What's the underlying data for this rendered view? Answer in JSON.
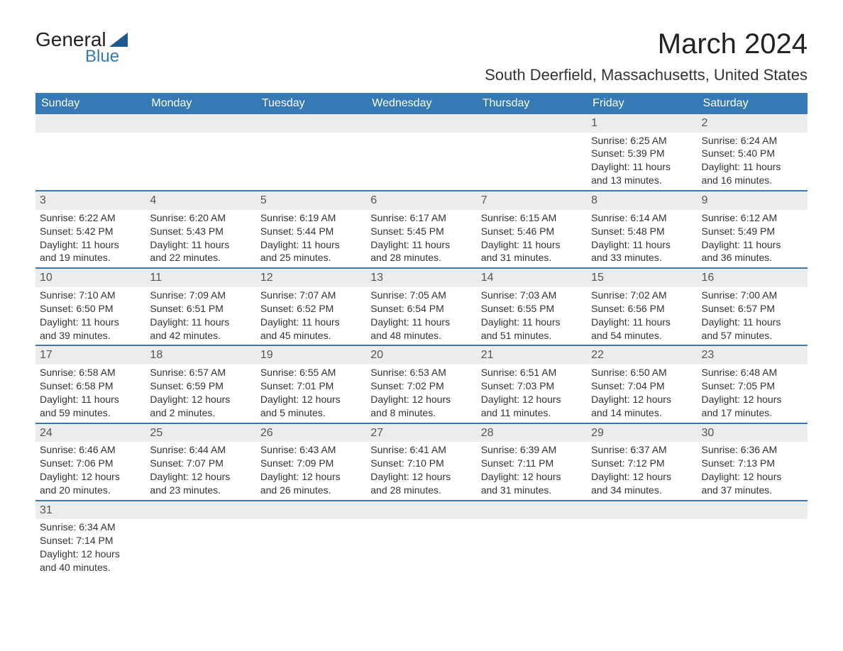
{
  "logo": {
    "top": "General",
    "bottom": "Blue"
  },
  "title": "March 2024",
  "location": "South Deerfield, Massachusetts, United States",
  "days_of_week": [
    "Sunday",
    "Monday",
    "Tuesday",
    "Wednesday",
    "Thursday",
    "Friday",
    "Saturday"
  ],
  "colors": {
    "header_bg": "#3579b5",
    "header_text": "#ffffff",
    "daynum_bg": "#ececec",
    "week_sep": "#3579b5"
  },
  "weeks": [
    [
      null,
      null,
      null,
      null,
      null,
      {
        "n": "1",
        "sr": "6:25 AM",
        "ss": "5:39 PM",
        "dl1": "11 hours",
        "dl2": "and 13 minutes."
      },
      {
        "n": "2",
        "sr": "6:24 AM",
        "ss": "5:40 PM",
        "dl1": "11 hours",
        "dl2": "and 16 minutes."
      }
    ],
    [
      {
        "n": "3",
        "sr": "6:22 AM",
        "ss": "5:42 PM",
        "dl1": "11 hours",
        "dl2": "and 19 minutes."
      },
      {
        "n": "4",
        "sr": "6:20 AM",
        "ss": "5:43 PM",
        "dl1": "11 hours",
        "dl2": "and 22 minutes."
      },
      {
        "n": "5",
        "sr": "6:19 AM",
        "ss": "5:44 PM",
        "dl1": "11 hours",
        "dl2": "and 25 minutes."
      },
      {
        "n": "6",
        "sr": "6:17 AM",
        "ss": "5:45 PM",
        "dl1": "11 hours",
        "dl2": "and 28 minutes."
      },
      {
        "n": "7",
        "sr": "6:15 AM",
        "ss": "5:46 PM",
        "dl1": "11 hours",
        "dl2": "and 31 minutes."
      },
      {
        "n": "8",
        "sr": "6:14 AM",
        "ss": "5:48 PM",
        "dl1": "11 hours",
        "dl2": "and 33 minutes."
      },
      {
        "n": "9",
        "sr": "6:12 AM",
        "ss": "5:49 PM",
        "dl1": "11 hours",
        "dl2": "and 36 minutes."
      }
    ],
    [
      {
        "n": "10",
        "sr": "7:10 AM",
        "ss": "6:50 PM",
        "dl1": "11 hours",
        "dl2": "and 39 minutes."
      },
      {
        "n": "11",
        "sr": "7:09 AM",
        "ss": "6:51 PM",
        "dl1": "11 hours",
        "dl2": "and 42 minutes."
      },
      {
        "n": "12",
        "sr": "7:07 AM",
        "ss": "6:52 PM",
        "dl1": "11 hours",
        "dl2": "and 45 minutes."
      },
      {
        "n": "13",
        "sr": "7:05 AM",
        "ss": "6:54 PM",
        "dl1": "11 hours",
        "dl2": "and 48 minutes."
      },
      {
        "n": "14",
        "sr": "7:03 AM",
        "ss": "6:55 PM",
        "dl1": "11 hours",
        "dl2": "and 51 minutes."
      },
      {
        "n": "15",
        "sr": "7:02 AM",
        "ss": "6:56 PM",
        "dl1": "11 hours",
        "dl2": "and 54 minutes."
      },
      {
        "n": "16",
        "sr": "7:00 AM",
        "ss": "6:57 PM",
        "dl1": "11 hours",
        "dl2": "and 57 minutes."
      }
    ],
    [
      {
        "n": "17",
        "sr": "6:58 AM",
        "ss": "6:58 PM",
        "dl1": "11 hours",
        "dl2": "and 59 minutes."
      },
      {
        "n": "18",
        "sr": "6:57 AM",
        "ss": "6:59 PM",
        "dl1": "12 hours",
        "dl2": "and 2 minutes."
      },
      {
        "n": "19",
        "sr": "6:55 AM",
        "ss": "7:01 PM",
        "dl1": "12 hours",
        "dl2": "and 5 minutes."
      },
      {
        "n": "20",
        "sr": "6:53 AM",
        "ss": "7:02 PM",
        "dl1": "12 hours",
        "dl2": "and 8 minutes."
      },
      {
        "n": "21",
        "sr": "6:51 AM",
        "ss": "7:03 PM",
        "dl1": "12 hours",
        "dl2": "and 11 minutes."
      },
      {
        "n": "22",
        "sr": "6:50 AM",
        "ss": "7:04 PM",
        "dl1": "12 hours",
        "dl2": "and 14 minutes."
      },
      {
        "n": "23",
        "sr": "6:48 AM",
        "ss": "7:05 PM",
        "dl1": "12 hours",
        "dl2": "and 17 minutes."
      }
    ],
    [
      {
        "n": "24",
        "sr": "6:46 AM",
        "ss": "7:06 PM",
        "dl1": "12 hours",
        "dl2": "and 20 minutes."
      },
      {
        "n": "25",
        "sr": "6:44 AM",
        "ss": "7:07 PM",
        "dl1": "12 hours",
        "dl2": "and 23 minutes."
      },
      {
        "n": "26",
        "sr": "6:43 AM",
        "ss": "7:09 PM",
        "dl1": "12 hours",
        "dl2": "and 26 minutes."
      },
      {
        "n": "27",
        "sr": "6:41 AM",
        "ss": "7:10 PM",
        "dl1": "12 hours",
        "dl2": "and 28 minutes."
      },
      {
        "n": "28",
        "sr": "6:39 AM",
        "ss": "7:11 PM",
        "dl1": "12 hours",
        "dl2": "and 31 minutes."
      },
      {
        "n": "29",
        "sr": "6:37 AM",
        "ss": "7:12 PM",
        "dl1": "12 hours",
        "dl2": "and 34 minutes."
      },
      {
        "n": "30",
        "sr": "6:36 AM",
        "ss": "7:13 PM",
        "dl1": "12 hours",
        "dl2": "and 37 minutes."
      }
    ],
    [
      {
        "n": "31",
        "sr": "6:34 AM",
        "ss": "7:14 PM",
        "dl1": "12 hours",
        "dl2": "and 40 minutes."
      },
      null,
      null,
      null,
      null,
      null,
      null
    ]
  ],
  "labels": {
    "sunrise": "Sunrise: ",
    "sunset": "Sunset: ",
    "daylight": "Daylight: "
  }
}
